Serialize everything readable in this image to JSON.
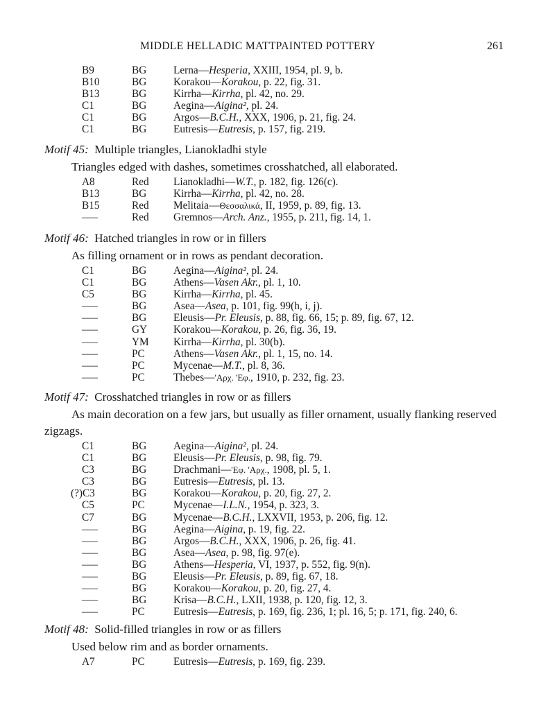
{
  "header": {
    "title": "MIDDLE HELLADIC MATTPAINTED POTTERY",
    "page_number": "261"
  },
  "sections": [
    {
      "motif_label": "",
      "motif_title": "",
      "description": "",
      "rows": [
        {
          "code": "B9",
          "ware": "BG",
          "site": "Lerna—",
          "source": "Hesperia",
          "italic": true,
          "details": ", XXIII, 1954, pl. 9, b."
        },
        {
          "code": "B10",
          "ware": "BG",
          "site": "Korakou—",
          "source": "Korakou",
          "italic": true,
          "details": ", p. 22, fig. 31."
        },
        {
          "code": "B13",
          "ware": "BG",
          "site": "Kirrha—",
          "source": "Kirrha",
          "italic": true,
          "details": ", pl. 42, no. 29."
        },
        {
          "code": "C1",
          "ware": "BG",
          "site": "Aegina—",
          "source": "Aigina²",
          "italic": true,
          "details": ", pl. 24."
        },
        {
          "code": "C1",
          "ware": "BG",
          "site": "Argos—",
          "source": "B.C.H.",
          "italic": true,
          "details": ", XXX, 1906, p. 21, fig. 24."
        },
        {
          "code": "C1",
          "ware": "BG",
          "site": "Eutresis—",
          "source": "Eutresis",
          "italic": true,
          "details": ", p. 157, fig. 219."
        }
      ]
    },
    {
      "motif_label": "Motif 45:",
      "motif_title": "Multiple triangles, Lianokladhi style",
      "description": "Triangles edged with dashes, sometimes crosshatched, all elaborated.",
      "rows": [
        {
          "code": "A8",
          "ware": "Red",
          "site": "Lianokladhi—",
          "source": "W.T.",
          "italic": true,
          "details": ", p. 182, fig. 126(c)."
        },
        {
          "code": "B13",
          "ware": "BG",
          "site": "Kirrha—",
          "source": "Kirrha",
          "italic": true,
          "details": ", pl. 42, no. 28."
        },
        {
          "code": "B15",
          "ware": "Red",
          "site": "Melitaia—",
          "source": "Θεσσαλικά",
          "italic": false,
          "details": ", II, 1959, p. 89, fig. 13."
        },
        {
          "code": "—",
          "ware": "Red",
          "site": "Gremnos—",
          "source": "Arch. Anz.",
          "italic": true,
          "details": ", 1955, p. 211, fig. 14, 1."
        }
      ]
    },
    {
      "motif_label": "Motif 46:",
      "motif_title": "Hatched triangles in row or in fillers",
      "description": "As filling ornament or in rows as pendant decoration.",
      "rows": [
        {
          "code": "C1",
          "ware": "BG",
          "site": "Aegina—",
          "source": "Aigina²",
          "italic": true,
          "details": ", pl. 24."
        },
        {
          "code": "C1",
          "ware": "BG",
          "site": "Athens—",
          "source": "Vasen Akr.",
          "italic": true,
          "details": ", pl. 1, 10."
        },
        {
          "code": "C5",
          "ware": "BG",
          "site": "Kirrha—",
          "source": "Kirrha",
          "italic": true,
          "details": ", pl. 45."
        },
        {
          "code": "—",
          "ware": "BG",
          "site": "Asea—",
          "source": "Asea",
          "italic": true,
          "details": ", p. 101, fig. 99(h, i, j)."
        },
        {
          "code": "—",
          "ware": "BG",
          "site": "Eleusis—",
          "source": "Pr. Eleusis",
          "italic": true,
          "details": ", p. 88, fig. 66, 15; p. 89, fig. 67, 12."
        },
        {
          "code": "—",
          "ware": "GY",
          "site": "Korakou—",
          "source": "Korakou",
          "italic": true,
          "details": ", p. 26, fig. 36, 19."
        },
        {
          "code": "—",
          "ware": "YM",
          "site": "Kirrha—",
          "source": "Kirrha",
          "italic": true,
          "details": ", pl. 30(b)."
        },
        {
          "code": "—",
          "ware": "PC",
          "site": "Athens—",
          "source": "Vasen Akr.",
          "italic": true,
          "details": ", pl. 1, 15, no. 14."
        },
        {
          "code": "—",
          "ware": "PC",
          "site": "Mycenae—",
          "source": "M.T.",
          "italic": true,
          "details": ", pl. 8, 36."
        },
        {
          "code": "—",
          "ware": "PC",
          "site": "Thebes—",
          "source": "'Αρχ. 'Εφ.",
          "italic": false,
          "details": ", 1910, p. 232, fig. 23."
        }
      ]
    },
    {
      "motif_label": "Motif 47:",
      "motif_title": "Crosshatched triangles in row or as fillers",
      "description": "As main decoration on a few jars, but usually as filler ornament, usually flanking reserved zigzags.",
      "rows": [
        {
          "code": "C1",
          "ware": "BG",
          "site": "Aegina—",
          "source": "Aigina²",
          "italic": true,
          "details": ", pl. 24."
        },
        {
          "code": "C1",
          "ware": "BG",
          "site": "Eleusis—",
          "source": "Pr. Eleusis",
          "italic": true,
          "details": ", p. 98, fig. 79."
        },
        {
          "code": "C3",
          "ware": "BG",
          "site": "Drachmani—",
          "source": "'Εφ. 'Αρχ.",
          "italic": false,
          "details": ", 1908, pl. 5, 1."
        },
        {
          "code": "C3",
          "ware": "BG",
          "site": "Eutresis—",
          "source": "Eutresis",
          "italic": true,
          "details": ", pl. 13."
        },
        {
          "code": "(?)C3",
          "ware": "BG",
          "site": "Korakou—",
          "source": "Korakou",
          "italic": true,
          "details": ", p. 20, fig. 27, 2."
        },
        {
          "code": "C5",
          "ware": "PC",
          "site": "Mycenae—",
          "source": "I.L.N.",
          "italic": true,
          "details": ", 1954, p. 323, 3."
        },
        {
          "code": "C7",
          "ware": "BG",
          "site": "Mycenae—",
          "source": "B.C.H.",
          "italic": true,
          "details": ", LXXVII, 1953, p. 206, fig. 12."
        },
        {
          "code": "—",
          "ware": "BG",
          "site": "Aegina—",
          "source": "Aigina",
          "italic": true,
          "details": ", p. 19, fig. 22."
        },
        {
          "code": "—",
          "ware": "BG",
          "site": "Argos—",
          "source": "B.C.H.",
          "italic": true,
          "details": ", XXX, 1906, p. 26, fig. 41."
        },
        {
          "code": "—",
          "ware": "BG",
          "site": "Asea—",
          "source": "Asea",
          "italic": true,
          "details": ", p. 98, fig. 97(e)."
        },
        {
          "code": "—",
          "ware": "BG",
          "site": "Athens—",
          "source": "Hesperia",
          "italic": true,
          "details": ", VI, 1937, p. 552, fig. 9(n)."
        },
        {
          "code": "—",
          "ware": "BG",
          "site": "Eleusis—",
          "source": "Pr. Eleusis",
          "italic": true,
          "details": ", p. 89, fig. 67, 18."
        },
        {
          "code": "—",
          "ware": "BG",
          "site": "Korakou—",
          "source": "Korakou",
          "italic": true,
          "details": ", p. 20, fig. 27, 4."
        },
        {
          "code": "—",
          "ware": "BG",
          "site": "Krisa—",
          "source": "B.C.H.",
          "italic": true,
          "details": ", LXII, 1938, p. 120, fig. 12, 3."
        },
        {
          "code": "—",
          "ware": "PC",
          "site": "Eutresis—",
          "source": "Eutresis",
          "italic": true,
          "details": ", p. 169, fig. 236, 1; pl. 16, 5; p. 171, fig. 240, 6."
        }
      ]
    },
    {
      "motif_label": "Motif 48:",
      "motif_title": "Solid-filled triangles in row or as fillers",
      "description": "Used below rim and as border ornaments.",
      "rows": [
        {
          "code": "A7",
          "ware": "PC",
          "site": "Eutresis—",
          "source": "Eutresis",
          "italic": true,
          "details": ", p. 169, fig. 239."
        }
      ]
    }
  ]
}
